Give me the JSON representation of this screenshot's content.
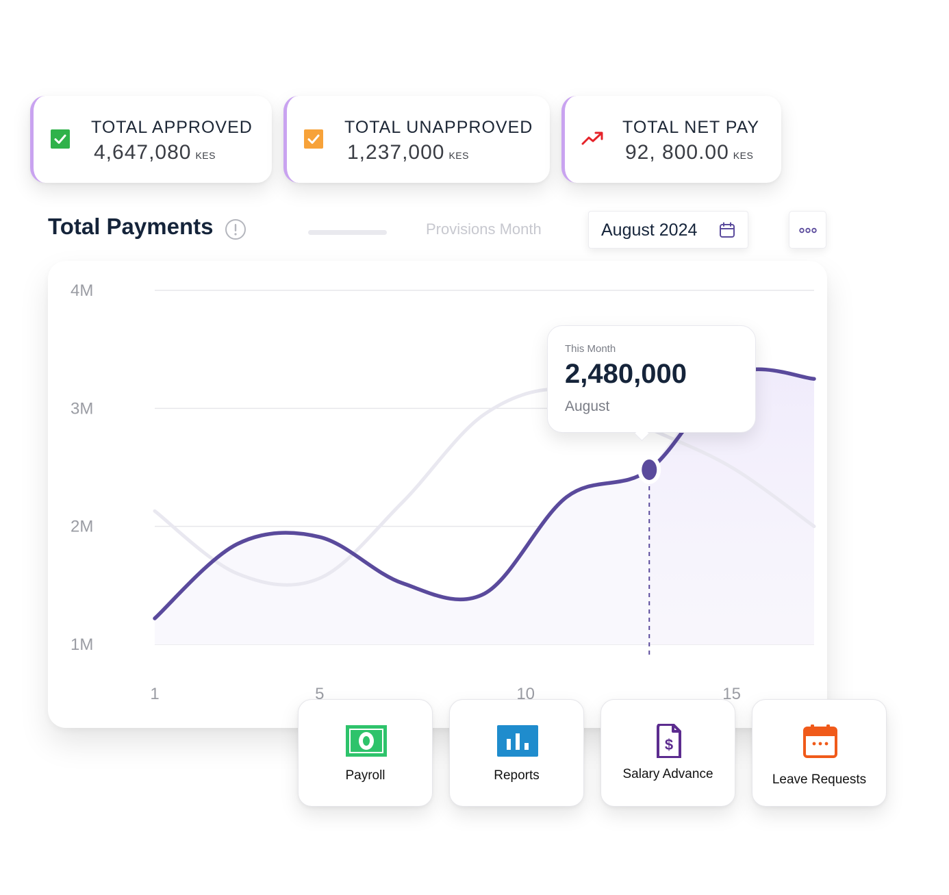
{
  "stats": [
    {
      "label": "TOTAL APPROVED",
      "value": "4,647,080",
      "unit": "KES",
      "icon": "checkbox-checked-green-icon"
    },
    {
      "label": "TOTAL UNAPPROVED",
      "value": "1,237,000",
      "unit": "KES",
      "icon": "checkbox-checked-orange-icon"
    },
    {
      "label": "TOTAL NET PAY",
      "value": "92, 800.00",
      "unit": "KES",
      "icon": "trending-up-red-icon"
    }
  ],
  "header": {
    "title": "Total Payments",
    "provisions_label": "Provisions Month",
    "date_value": "August 2024"
  },
  "tooltip": {
    "caption": "This Month",
    "value": "2,480,000",
    "month": "August"
  },
  "colors": {
    "primary": "#5a4a9c",
    "secondary_line": "#e9e8f0",
    "card_accent": "#c9a3f0",
    "approved": "#2fb24a",
    "unapproved": "#f7a239",
    "net_pay": "#e5232a"
  },
  "chart_data": {
    "type": "line",
    "x": [
      1,
      3,
      5,
      7,
      9,
      11,
      13,
      15,
      17
    ],
    "xticks": [
      "1",
      "5",
      "10",
      "15"
    ],
    "yticks": [
      "4M",
      "3M",
      "2M",
      "1M"
    ],
    "ylim": [
      1000000,
      4000000
    ],
    "series": [
      {
        "values": [
          1220000,
          1850000,
          1910000,
          1520000,
          1430000,
          2250000,
          2480000,
          3280000,
          3250000
        ]
      },
      {
        "values": [
          2130000,
          1600000,
          1560000,
          2200000,
          2950000,
          3160000,
          2830000,
          2500000,
          2000000
        ]
      }
    ],
    "highlight": {
      "x": 13,
      "value": 2480000
    }
  },
  "tiles": [
    {
      "label": "Payroll",
      "icon": "cash-icon"
    },
    {
      "label": "Reports",
      "icon": "bar-chart-icon"
    },
    {
      "label": "Salary Advance",
      "icon": "invoice-dollar-icon"
    },
    {
      "label": "Leave Requests",
      "icon": "calendar-icon"
    }
  ]
}
